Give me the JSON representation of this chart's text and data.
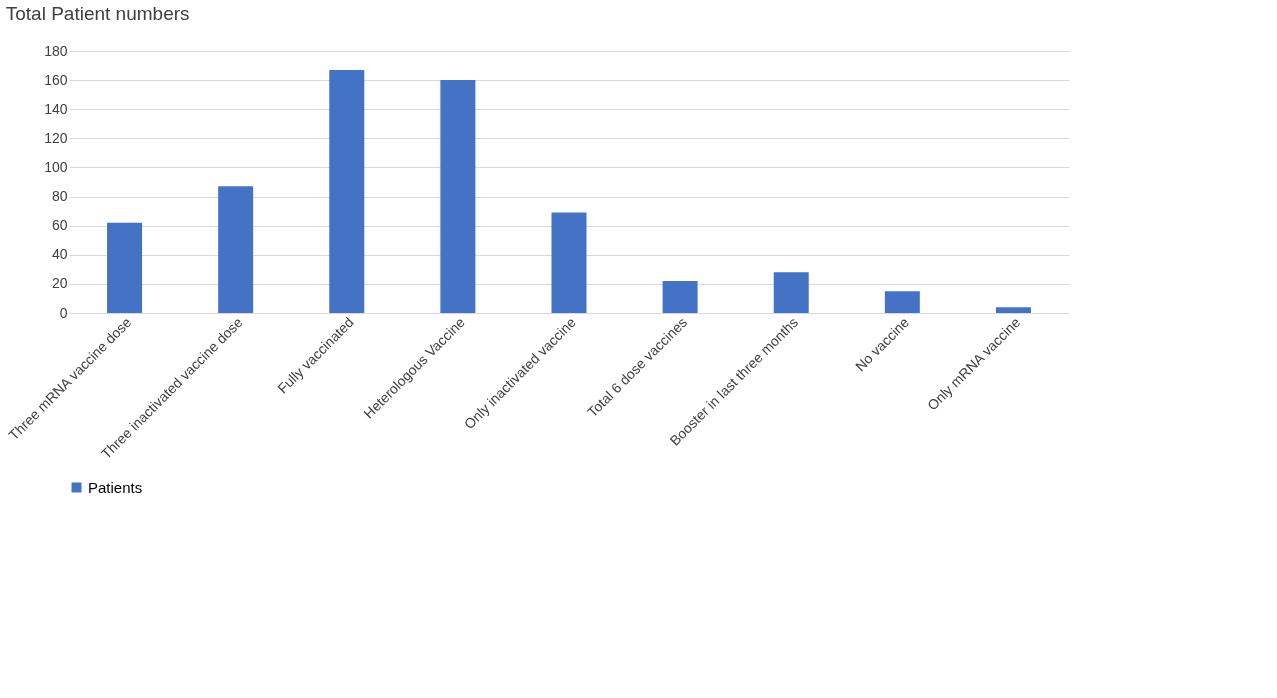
{
  "chart_data": {
    "type": "bar",
    "title": "Total Patient numbers",
    "categories": [
      "Three mRNA vaccine dose",
      "Three inactivated vaccine dose",
      "Fully vaccinated",
      "Heterologous Vaccine",
      "Only inactivated vaccine",
      "Total 6 dose vaccines",
      "Booster in last three months",
      "No vaccine",
      "Only mRNA vaccine"
    ],
    "series": [
      {
        "name": "Patients",
        "color": "#4472c4",
        "values": [
          62,
          87,
          167,
          160,
          69,
          22,
          28,
          15,
          4
        ]
      }
    ],
    "ylim": [
      0,
      180
    ],
    "yticks": [
      0,
      20,
      40,
      60,
      80,
      100,
      120,
      140,
      160,
      180
    ],
    "grid": "y",
    "legend": "bottom"
  }
}
